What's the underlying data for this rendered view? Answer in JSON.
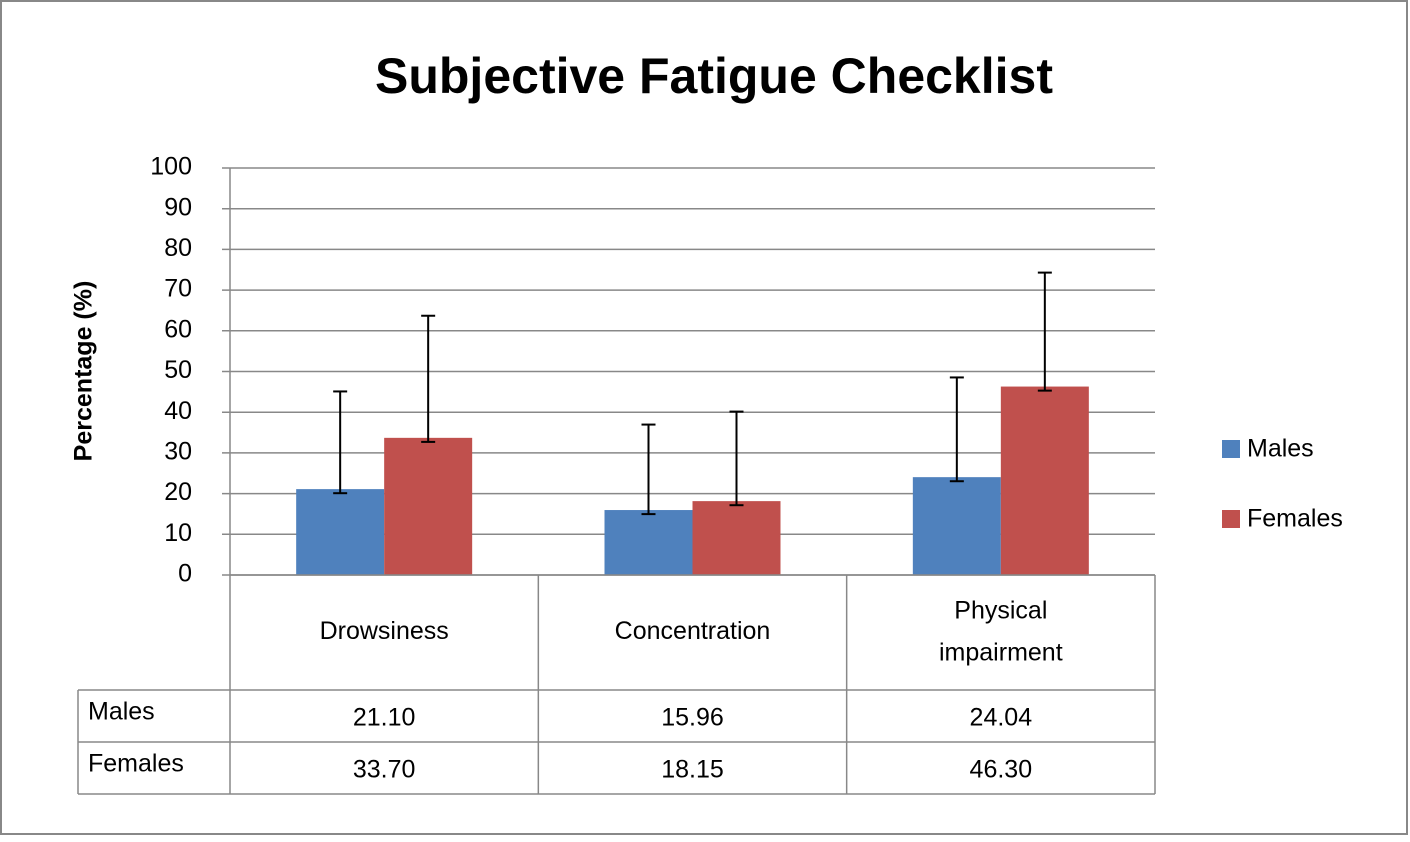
{
  "chart_data": {
    "type": "bar",
    "title": "Subjective Fatigue Checklist",
    "y_label": "Percentage (%)",
    "categories": [
      "Drowsiness",
      "Concentration",
      "Physical impairment"
    ],
    "series": [
      {
        "name": "Males",
        "color": "#4f81bd",
        "values": [
          21.1,
          15.96,
          24.04
        ],
        "value_labels": [
          "21.10",
          "15.96",
          "24.04"
        ],
        "error_plus": [
          24,
          21,
          24.5
        ],
        "error_minus": [
          1,
          1,
          1
        ]
      },
      {
        "name": "Females",
        "color": "#c0504d",
        "values": [
          33.7,
          18.15,
          46.3
        ],
        "value_labels": [
          "33.70",
          "18.15",
          "46.30"
        ],
        "error_plus": [
          30,
          22,
          28
        ],
        "error_minus": [
          1,
          1,
          1
        ]
      }
    ],
    "ylim": [
      0,
      100
    ],
    "yticks": [
      0,
      10,
      20,
      30,
      40,
      50,
      60,
      70,
      80,
      90,
      100
    ],
    "grid": true,
    "legend": "right",
    "data_table": true
  }
}
